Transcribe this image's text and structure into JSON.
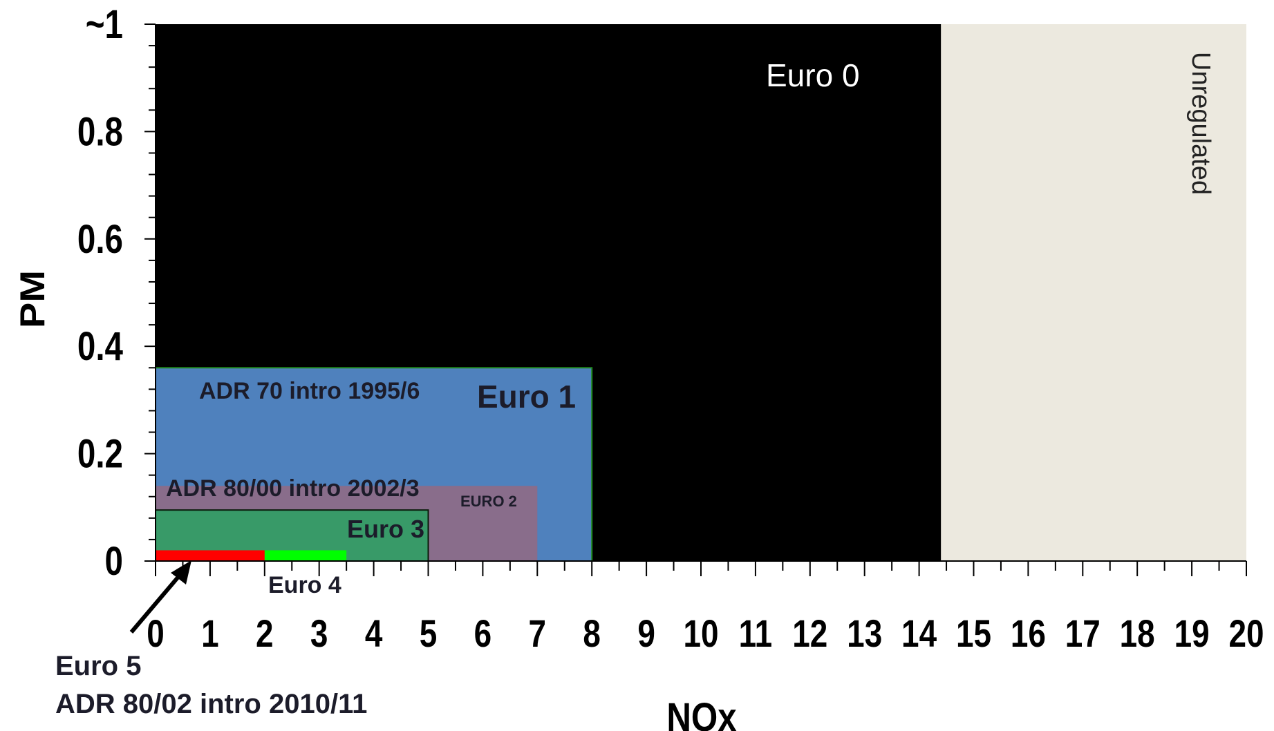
{
  "chart_data": {
    "type": "area",
    "xlabel": "NOx",
    "ylabel": "PM",
    "xlim": [
      0,
      20
    ],
    "ylim": [
      0,
      1
    ],
    "x_ticks": [
      "0",
      "1",
      "2",
      "3",
      "4",
      "5",
      "6",
      "7",
      "8",
      "9",
      "10",
      "11",
      "12",
      "13",
      "14",
      "15",
      "16",
      "17",
      "18",
      "19",
      "20"
    ],
    "y_ticks": [
      {
        "value": 0,
        "label": "0"
      },
      {
        "value": 0.2,
        "label": "0.2"
      },
      {
        "value": 0.4,
        "label": "0.4"
      },
      {
        "value": 0.6,
        "label": "0.6"
      },
      {
        "value": 0.8,
        "label": "0.8"
      },
      {
        "value": 1,
        "label": "~1"
      }
    ],
    "regions": [
      {
        "name": "Unregulated",
        "nox": 20,
        "pm": 1,
        "color": "#ece9df"
      },
      {
        "name": "Euro 0",
        "nox": 14.4,
        "pm": 1,
        "color": "#000000"
      },
      {
        "name": "Euro 1",
        "nox": 8,
        "pm": 0.36,
        "color": "#4f81bd",
        "note": "ADR 70 intro 1995/6"
      },
      {
        "name": "EURO 2",
        "nox": 7,
        "pm": 0.14,
        "color": "#8c6b88",
        "note": "ADR 80/00 intro 2002/3"
      },
      {
        "name": "Euro 3",
        "nox": 5,
        "pm": 0.095,
        "color": "#389a68"
      },
      {
        "name": "Euro 4",
        "nox": 3.5,
        "pm": 0.02,
        "color": "#00ff00"
      },
      {
        "name": "Euro 5",
        "nox": 2,
        "pm": 0.02,
        "color": "#ff0000",
        "note": "ADR 80/02 intro 2010/11"
      }
    ]
  }
}
